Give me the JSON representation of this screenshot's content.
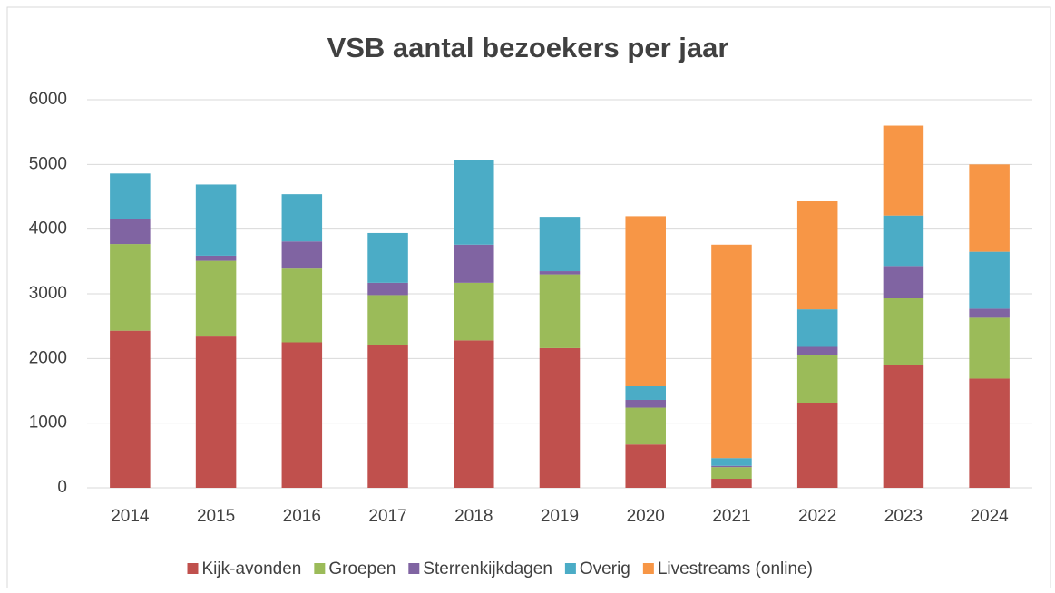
{
  "chart_data": {
    "type": "bar",
    "stacked": true,
    "title": "VSB aantal bezoekers per jaar",
    "categories": [
      "2014",
      "2015",
      "2016",
      "2017",
      "2018",
      "2019",
      "2020",
      "2021",
      "2022",
      "2023",
      "2024"
    ],
    "series": [
      {
        "name": "Kijk-avonden",
        "color": "#c0504d",
        "values": [
          2430,
          2340,
          2250,
          2210,
          2280,
          2160,
          670,
          140,
          1310,
          1900,
          1690
        ]
      },
      {
        "name": "Groepen",
        "color": "#9bbb59",
        "values": [
          1340,
          1170,
          1140,
          770,
          890,
          1140,
          570,
          180,
          750,
          1030,
          940
        ]
      },
      {
        "name": "Sterrenkijkdagen",
        "color": "#8064a2",
        "values": [
          390,
          80,
          420,
          190,
          590,
          50,
          120,
          20,
          120,
          500,
          140
        ]
      },
      {
        "name": "Overig",
        "color": "#4bacc6",
        "values": [
          700,
          1100,
          730,
          770,
          1310,
          840,
          210,
          120,
          580,
          780,
          880
        ]
      },
      {
        "name": "Livestreams (online)",
        "color": "#f79646",
        "values": [
          0,
          0,
          0,
          0,
          0,
          0,
          2630,
          3300,
          1670,
          1390,
          1350
        ]
      }
    ],
    "ylim": [
      0,
      6000
    ],
    "yticks": [
      0,
      1000,
      2000,
      3000,
      4000,
      5000,
      6000
    ],
    "grid": true,
    "legend": "bottom"
  }
}
